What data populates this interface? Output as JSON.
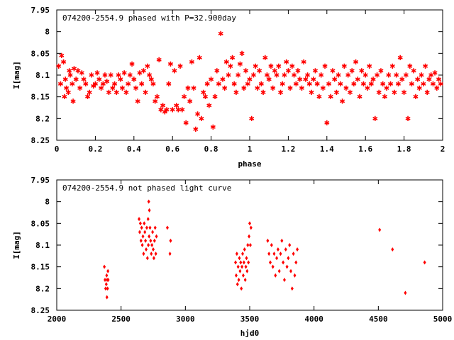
{
  "chart_data": [
    {
      "type": "scatter",
      "title": "074200-2554.9 phased with P=32.900day",
      "xlabel": "phase",
      "ylabel": "I[mag]",
      "xlim": [
        0,
        2
      ],
      "ylim": [
        8.25,
        7.95
      ],
      "y_inverted": true,
      "x_ticks": [
        "0",
        "0.2",
        "0.4",
        "0.6",
        "0.8",
        "1",
        "1.2",
        "1.4",
        "1.6",
        "1.8",
        "2"
      ],
      "y_ticks": [
        "7.95",
        "8",
        "8.05",
        "8.1",
        "8.15",
        "8.2",
        "8.25"
      ],
      "marker_color": "#ff0000",
      "phased_points": [
        [
          0.01,
          8.08
        ],
        [
          0.02,
          8.12
        ],
        [
          0.025,
          8.055
        ],
        [
          0.035,
          8.07
        ],
        [
          0.04,
          8.15
        ],
        [
          0.045,
          8.11
        ],
        [
          0.05,
          8.13
        ],
        [
          0.06,
          8.14
        ],
        [
          0.065,
          8.09
        ],
        [
          0.07,
          8.1
        ],
        [
          0.08,
          8.12
        ],
        [
          0.085,
          8.16
        ],
        [
          0.09,
          8.085
        ],
        [
          0.1,
          8.11
        ],
        [
          0.11,
          8.09
        ],
        [
          0.12,
          8.13
        ],
        [
          0.13,
          8.095
        ],
        [
          0.14,
          8.11
        ],
        [
          0.15,
          8.12
        ],
        [
          0.16,
          8.15
        ],
        [
          0.17,
          8.14
        ],
        [
          0.18,
          8.1
        ],
        [
          0.19,
          8.125
        ],
        [
          0.2,
          8.12
        ],
        [
          0.21,
          8.095
        ],
        [
          0.22,
          8.11
        ],
        [
          0.23,
          8.13
        ],
        [
          0.24,
          8.12
        ],
        [
          0.25,
          8.1
        ],
        [
          0.26,
          8.115
        ],
        [
          0.27,
          8.14
        ],
        [
          0.28,
          8.1
        ],
        [
          0.29,
          8.13
        ],
        [
          0.3,
          8.12
        ],
        [
          0.31,
          8.14
        ],
        [
          0.32,
          8.1
        ],
        [
          0.33,
          8.11
        ],
        [
          0.34,
          8.13
        ],
        [
          0.35,
          8.095
        ],
        [
          0.36,
          8.14
        ],
        [
          0.37,
          8.12
        ],
        [
          0.38,
          8.1
        ],
        [
          0.39,
          8.075
        ],
        [
          0.4,
          8.11
        ],
        [
          0.41,
          8.13
        ],
        [
          0.42,
          8.16
        ],
        [
          0.43,
          8.095
        ],
        [
          0.44,
          8.12
        ],
        [
          0.45,
          8.09
        ],
        [
          0.46,
          8.14
        ],
        [
          0.47,
          8.08
        ],
        [
          0.48,
          8.1
        ],
        [
          0.49,
          8.11
        ],
        [
          0.5,
          8.12
        ],
        [
          0.51,
          8.16
        ],
        [
          0.52,
          8.15
        ],
        [
          0.53,
          8.065
        ],
        [
          0.54,
          8.18
        ],
        [
          0.55,
          8.17
        ],
        [
          0.56,
          8.185
        ],
        [
          0.57,
          8.18
        ],
        [
          0.58,
          8.12
        ],
        [
          0.59,
          8.075
        ],
        [
          0.6,
          8.18
        ],
        [
          0.61,
          8.09
        ],
        [
          0.62,
          8.17
        ],
        [
          0.63,
          8.18
        ],
        [
          0.64,
          8.08
        ],
        [
          0.65,
          8.18
        ],
        [
          0.66,
          8.15
        ],
        [
          0.67,
          8.21
        ],
        [
          0.68,
          8.13
        ],
        [
          0.69,
          8.16
        ],
        [
          0.7,
          8.07
        ],
        [
          0.71,
          8.13
        ],
        [
          0.72,
          8.225
        ],
        [
          0.73,
          8.19
        ],
        [
          0.74,
          8.06
        ],
        [
          0.75,
          8.2
        ],
        [
          0.76,
          8.14
        ],
        [
          0.77,
          8.15
        ],
        [
          0.78,
          8.12
        ],
        [
          0.79,
          8.17
        ],
        [
          0.8,
          8.11
        ],
        [
          0.81,
          8.22
        ],
        [
          0.82,
          8.15
        ],
        [
          0.83,
          8.09
        ],
        [
          0.84,
          8.12
        ],
        [
          0.85,
          8.005
        ],
        [
          0.86,
          8.11
        ],
        [
          0.87,
          8.13
        ],
        [
          0.88,
          8.07
        ],
        [
          0.89,
          8.1
        ],
        [
          0.9,
          8.08
        ],
        [
          0.91,
          8.06
        ],
        [
          0.92,
          8.12
        ],
        [
          0.93,
          8.14
        ],
        [
          0.94,
          8.1
        ],
        [
          0.95,
          8.075
        ],
        [
          0.96,
          8.05
        ],
        [
          0.97,
          8.13
        ],
        [
          0.98,
          8.09
        ],
        [
          0.99,
          8.12
        ],
        [
          1.0,
          8.11
        ],
        [
          1.01,
          8.2
        ],
        [
          1.02,
          8.1
        ],
        [
          1.03,
          8.08
        ],
        [
          1.04,
          8.13
        ],
        [
          1.05,
          8.09
        ],
        [
          1.06,
          8.12
        ],
        [
          1.07,
          8.14
        ],
        [
          1.08,
          8.06
        ],
        [
          1.09,
          8.1
        ],
        [
          1.1,
          8.11
        ],
        [
          1.11,
          8.08
        ],
        [
          1.12,
          8.13
        ],
        [
          1.13,
          8.09
        ],
        [
          1.14,
          8.1
        ],
        [
          1.15,
          8.08
        ],
        [
          1.16,
          8.14
        ],
        [
          1.17,
          8.12
        ],
        [
          1.18,
          8.1
        ],
        [
          1.19,
          8.07
        ],
        [
          1.2,
          8.09
        ],
        [
          1.21,
          8.13
        ],
        [
          1.22,
          8.08
        ],
        [
          1.23,
          8.1
        ],
        [
          1.24,
          8.12
        ],
        [
          1.25,
          8.09
        ],
        [
          1.26,
          8.11
        ],
        [
          1.27,
          8.13
        ],
        [
          1.28,
          8.07
        ],
        [
          1.29,
          8.11
        ],
        [
          1.3,
          8.1
        ],
        [
          1.31,
          8.12
        ],
        [
          1.32,
          8.14
        ],
        [
          1.33,
          8.11
        ],
        [
          1.34,
          8.09
        ],
        [
          1.35,
          8.12
        ],
        [
          1.36,
          8.15
        ],
        [
          1.37,
          8.1
        ],
        [
          1.38,
          8.13
        ],
        [
          1.39,
          8.08
        ],
        [
          1.4,
          8.21
        ],
        [
          1.41,
          8.12
        ],
        [
          1.42,
          8.15
        ],
        [
          1.43,
          8.09
        ],
        [
          1.44,
          8.11
        ],
        [
          1.45,
          8.14
        ],
        [
          1.46,
          8.1
        ],
        [
          1.47,
          8.12
        ],
        [
          1.48,
          8.16
        ],
        [
          1.49,
          8.08
        ],
        [
          1.5,
          8.13
        ],
        [
          1.51,
          8.1
        ],
        [
          1.52,
          8.14
        ],
        [
          1.53,
          8.09
        ],
        [
          1.54,
          8.12
        ],
        [
          1.55,
          8.07
        ],
        [
          1.56,
          8.11
        ],
        [
          1.57,
          8.15
        ],
        [
          1.58,
          8.09
        ],
        [
          1.59,
          8.12
        ],
        [
          1.6,
          8.1
        ],
        [
          1.61,
          8.13
        ],
        [
          1.62,
          8.08
        ],
        [
          1.63,
          8.12
        ],
        [
          1.64,
          8.11
        ],
        [
          1.65,
          8.2
        ],
        [
          1.66,
          8.1
        ],
        [
          1.67,
          8.14
        ],
        [
          1.68,
          8.09
        ],
        [
          1.69,
          8.12
        ],
        [
          1.7,
          8.15
        ],
        [
          1.71,
          8.13
        ],
        [
          1.72,
          8.1
        ],
        [
          1.73,
          8.12
        ],
        [
          1.74,
          8.08
        ],
        [
          1.75,
          8.14
        ],
        [
          1.76,
          8.1
        ],
        [
          1.77,
          8.12
        ],
        [
          1.78,
          8.06
        ],
        [
          1.79,
          8.11
        ],
        [
          1.8,
          8.14
        ],
        [
          1.81,
          8.1
        ],
        [
          1.82,
          8.2
        ],
        [
          1.83,
          8.08
        ],
        [
          1.84,
          8.12
        ],
        [
          1.85,
          8.09
        ],
        [
          1.86,
          8.15
        ],
        [
          1.87,
          8.11
        ],
        [
          1.88,
          8.13
        ],
        [
          1.89,
          8.1
        ],
        [
          1.9,
          8.12
        ],
        [
          1.91,
          8.08
        ],
        [
          1.92,
          8.14
        ],
        [
          1.93,
          8.11
        ],
        [
          1.94,
          8.1
        ],
        [
          1.95,
          8.12
        ],
        [
          1.96,
          8.095
        ],
        [
          1.97,
          8.13
        ],
        [
          1.98,
          8.11
        ],
        [
          1.99,
          8.12
        ]
      ]
    },
    {
      "type": "scatter",
      "title": "074200-2554.9 not phased light curve",
      "xlabel": "hjd0",
      "ylabel": "I[mag]",
      "xlim": [
        2000,
        5000
      ],
      "ylim": [
        8.25,
        7.95
      ],
      "y_inverted": true,
      "x_ticks": [
        "2000",
        "2500",
        "3000",
        "3500",
        "4000",
        "4500",
        "5000"
      ],
      "y_ticks": [
        "7.95",
        "8",
        "8.05",
        "8.1",
        "8.15",
        "8.2",
        "8.25"
      ],
      "marker_color": "#ff0000",
      "lightcurve_points": [
        [
          2370,
          8.15
        ],
        [
          2375,
          8.18
        ],
        [
          2380,
          8.2
        ],
        [
          2385,
          8.19
        ],
        [
          2388,
          8.17
        ],
        [
          2390,
          8.22
        ],
        [
          2392,
          8.18
        ],
        [
          2395,
          8.2
        ],
        [
          2398,
          8.16
        ],
        [
          2400,
          8.18
        ],
        [
          2640,
          8.04
        ],
        [
          2645,
          8.07
        ],
        [
          2650,
          8.05
        ],
        [
          2655,
          8.09
        ],
        [
          2660,
          8.06
        ],
        [
          2665,
          8.1
        ],
        [
          2670,
          8.08
        ],
        [
          2675,
          8.12
        ],
        [
          2680,
          8.05
        ],
        [
          2685,
          8.07
        ],
        [
          2690,
          8.09
        ],
        [
          2695,
          8.11
        ],
        [
          2700,
          8.06
        ],
        [
          2705,
          8.13
        ],
        [
          2710,
          8.04
        ],
        [
          2712,
          8.1
        ],
        [
          2715,
          8.0
        ],
        [
          2718,
          8.08
        ],
        [
          2720,
          8.02
        ],
        [
          2725,
          8.06
        ],
        [
          2730,
          8.09
        ],
        [
          2735,
          8.12
        ],
        [
          2740,
          8.1
        ],
        [
          2745,
          8.07
        ],
        [
          2750,
          8.11
        ],
        [
          2755,
          8.13
        ],
        [
          2760,
          8.09
        ],
        [
          2765,
          8.06
        ],
        [
          2770,
          8.12
        ],
        [
          2775,
          8.08
        ],
        [
          2860,
          8.06
        ],
        [
          2880,
          8.12
        ],
        [
          2885,
          8.09
        ],
        [
          3390,
          8.14
        ],
        [
          3395,
          8.17
        ],
        [
          3400,
          8.12
        ],
        [
          3405,
          8.19
        ],
        [
          3410,
          8.15
        ],
        [
          3415,
          8.18
        ],
        [
          3420,
          8.13
        ],
        [
          3425,
          8.16
        ],
        [
          3430,
          8.14
        ],
        [
          3435,
          8.2
        ],
        [
          3440,
          8.15
        ],
        [
          3445,
          8.12
        ],
        [
          3450,
          8.17
        ],
        [
          3455,
          8.14
        ],
        [
          3460,
          8.11
        ],
        [
          3465,
          8.18
        ],
        [
          3470,
          8.15
        ],
        [
          3475,
          8.13
        ],
        [
          3480,
          8.16
        ],
        [
          3485,
          8.1
        ],
        [
          3490,
          8.14
        ],
        [
          3495,
          8.08
        ],
        [
          3500,
          8.05
        ],
        [
          3505,
          8.1
        ],
        [
          3510,
          8.06
        ],
        [
          3640,
          8.09
        ],
        [
          3650,
          8.12
        ],
        [
          3660,
          8.14
        ],
        [
          3670,
          8.1
        ],
        [
          3680,
          8.15
        ],
        [
          3690,
          8.12
        ],
        [
          3700,
          8.17
        ],
        [
          3710,
          8.13
        ],
        [
          3720,
          8.11
        ],
        [
          3730,
          8.16
        ],
        [
          3740,
          8.12
        ],
        [
          3750,
          8.09
        ],
        [
          3760,
          8.14
        ],
        [
          3770,
          8.18
        ],
        [
          3780,
          8.11
        ],
        [
          3790,
          8.15
        ],
        [
          3800,
          8.13
        ],
        [
          3810,
          8.1
        ],
        [
          3820,
          8.16
        ],
        [
          3830,
          8.2
        ],
        [
          3840,
          8.12
        ],
        [
          3850,
          8.17
        ],
        [
          3860,
          8.14
        ],
        [
          3870,
          8.11
        ],
        [
          4510,
          8.065
        ],
        [
          4610,
          8.11
        ],
        [
          4710,
          8.21
        ],
        [
          4860,
          8.14
        ]
      ]
    }
  ]
}
